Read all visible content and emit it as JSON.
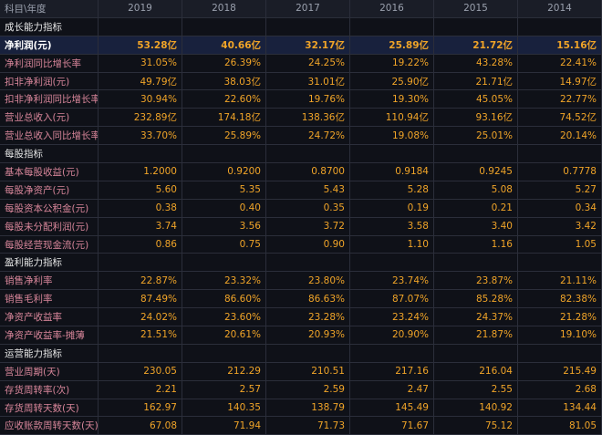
{
  "header": {
    "label": "科目\\年度",
    "years": [
      "2019",
      "2018",
      "2017",
      "2016",
      "2015",
      "2014"
    ]
  },
  "sections": [
    {
      "title": "成长能力指标",
      "rows": [
        {
          "label": "净利润(元)",
          "values": [
            "53.28亿",
            "40.66亿",
            "32.17亿",
            "25.89亿",
            "21.72亿",
            "15.16亿"
          ]
        },
        {
          "label": "净利润同比增长率",
          "values": [
            "31.05%",
            "26.39%",
            "24.25%",
            "19.22%",
            "43.28%",
            "22.41%"
          ]
        },
        {
          "label": "扣非净利润(元)",
          "values": [
            "49.79亿",
            "38.03亿",
            "31.01亿",
            "25.90亿",
            "21.71亿",
            "14.97亿"
          ]
        },
        {
          "label": "扣非净利润同比增长率",
          "values": [
            "30.94%",
            "22.60%",
            "19.76%",
            "19.30%",
            "45.05%",
            "22.77%"
          ]
        },
        {
          "label": "营业总收入(元)",
          "values": [
            "232.89亿",
            "174.18亿",
            "138.36亿",
            "110.94亿",
            "93.16亿",
            "74.52亿"
          ]
        },
        {
          "label": "营业总收入同比增长率",
          "values": [
            "33.70%",
            "25.89%",
            "24.72%",
            "19.08%",
            "25.01%",
            "20.14%"
          ]
        }
      ]
    },
    {
      "title": "每股指标",
      "rows": [
        {
          "label": "基本每股收益(元)",
          "values": [
            "1.2000",
            "0.9200",
            "0.8700",
            "0.9184",
            "0.9245",
            "0.7778"
          ]
        },
        {
          "label": "每股净资产(元)",
          "values": [
            "5.60",
            "5.35",
            "5.43",
            "5.28",
            "5.08",
            "5.27"
          ]
        },
        {
          "label": "每股资本公积金(元)",
          "values": [
            "0.38",
            "0.40",
            "0.35",
            "0.19",
            "0.21",
            "0.34"
          ]
        },
        {
          "label": "每股未分配利润(元)",
          "values": [
            "3.74",
            "3.56",
            "3.72",
            "3.58",
            "3.40",
            "3.42"
          ]
        },
        {
          "label": "每股经营现金流(元)",
          "values": [
            "0.86",
            "0.75",
            "0.90",
            "1.10",
            "1.16",
            "1.05"
          ]
        }
      ]
    },
    {
      "title": "盈利能力指标",
      "rows": [
        {
          "label": "销售净利率",
          "values": [
            "22.87%",
            "23.32%",
            "23.80%",
            "23.74%",
            "23.87%",
            "21.11%"
          ]
        },
        {
          "label": "销售毛利率",
          "values": [
            "87.49%",
            "86.60%",
            "86.63%",
            "87.07%",
            "85.28%",
            "82.38%"
          ]
        },
        {
          "label": "净资产收益率",
          "values": [
            "24.02%",
            "23.60%",
            "23.28%",
            "23.24%",
            "24.37%",
            "21.28%"
          ]
        },
        {
          "label": "净资产收益率-摊薄",
          "values": [
            "21.51%",
            "20.61%",
            "20.93%",
            "20.90%",
            "21.87%",
            "19.10%"
          ]
        }
      ]
    },
    {
      "title": "运营能力指标",
      "rows": [
        {
          "label": "营业周期(天)",
          "values": [
            "230.05",
            "212.29",
            "210.51",
            "217.16",
            "216.04",
            "215.49"
          ]
        },
        {
          "label": "存货周转率(次)",
          "values": [
            "2.21",
            "2.57",
            "2.59",
            "2.47",
            "2.55",
            "2.68"
          ]
        },
        {
          "label": "存货周转天数(天)",
          "values": [
            "162.97",
            "140.35",
            "138.79",
            "145.49",
            "140.92",
            "134.44"
          ]
        },
        {
          "label": "应收账款周转天数(天)",
          "values": [
            "67.08",
            "71.94",
            "71.73",
            "71.67",
            "75.12",
            "81.05"
          ]
        }
      ]
    }
  ]
}
